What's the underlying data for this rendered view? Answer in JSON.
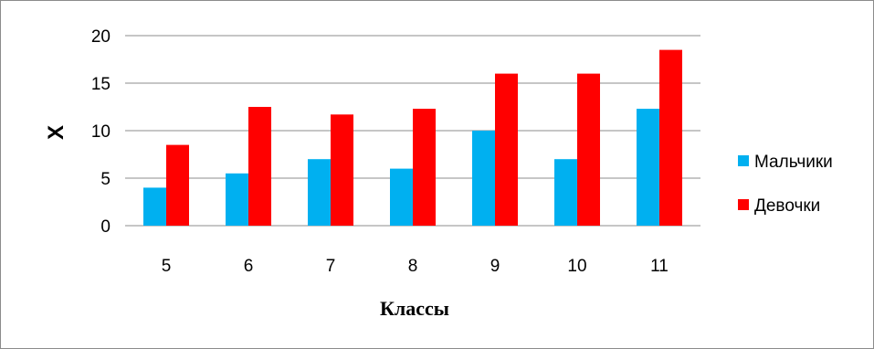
{
  "chart_data": {
    "type": "bar",
    "categories": [
      "5",
      "6",
      "7",
      "8",
      "9",
      "10",
      "11"
    ],
    "series": [
      {
        "name": "Мальчики",
        "color": "#00b0f0",
        "values": [
          4,
          5.5,
          7,
          6,
          10,
          7,
          12.3
        ]
      },
      {
        "name": "Девочки",
        "color": "#ff0000",
        "values": [
          8.5,
          12.5,
          11.7,
          12.3,
          16,
          16,
          18.5
        ]
      }
    ],
    "xlabel": "Классы",
    "ylabel": "X",
    "ylim": [
      0,
      20
    ],
    "yticks": [
      "0",
      "5",
      "10",
      "15",
      "20"
    ],
    "grid": true,
    "legend": "right"
  }
}
